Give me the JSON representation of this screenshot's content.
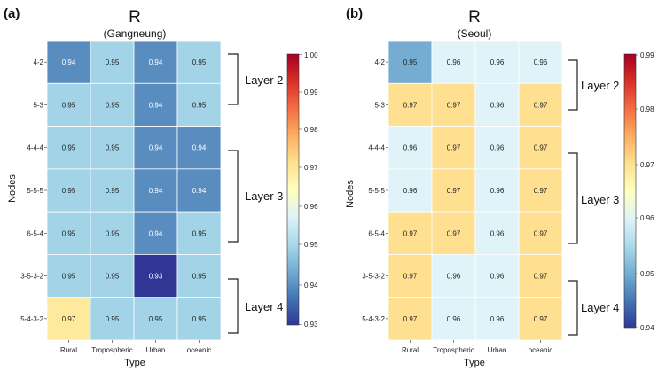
{
  "figure": {
    "panels": [
      {
        "id": "a",
        "panel_label": "(a)",
        "title": "R",
        "subtitle": "(Gangneung)",
        "ylabel": "Nodes",
        "xlabel": "Type",
        "layer_labels": [
          "Layer 2",
          "Layer 3",
          "Layer 4"
        ],
        "colorbar_ticks": [
          "1.00",
          "0.99",
          "0.98",
          "0.97",
          "0.96",
          "0.95",
          "0.94",
          "0.93"
        ]
      },
      {
        "id": "b",
        "panel_label": "(b)",
        "title": "R",
        "subtitle": "(Seoul)",
        "ylabel": "Nodes",
        "xlabel": "Type",
        "layer_labels": [
          "Layer 2",
          "Layer 3",
          "Layer 4"
        ],
        "colorbar_ticks": [
          "0.99",
          "0.98",
          "0.97",
          "0.96",
          "0.95",
          "0.94"
        ]
      }
    ]
  },
  "chart_data": [
    {
      "type": "heatmap",
      "title": "R",
      "subtitle": "(Gangneung)",
      "xlabel": "Type",
      "ylabel": "Nodes",
      "categories": [
        "Rural",
        "Tropospheric",
        "Urban",
        "oceanic"
      ],
      "rows": [
        "4-2",
        "5-3",
        "4-4-4",
        "5-5-5",
        "6-5-4",
        "3-5-3-2",
        "5-4-3-2"
      ],
      "values": [
        [
          0.94,
          0.95,
          0.94,
          0.95
        ],
        [
          0.95,
          0.95,
          0.94,
          0.95
        ],
        [
          0.95,
          0.95,
          0.94,
          0.94
        ],
        [
          0.95,
          0.95,
          0.94,
          0.94
        ],
        [
          0.95,
          0.95,
          0.94,
          0.95
        ],
        [
          0.95,
          0.95,
          0.93,
          0.95
        ],
        [
          0.97,
          0.95,
          0.95,
          0.95
        ]
      ],
      "color_range": [
        0.93,
        1.0
      ],
      "colormap": "RdYlBu_r",
      "groups": [
        {
          "label": "Layer 2",
          "rows": [
            "4-2",
            "5-3"
          ]
        },
        {
          "label": "Layer 3",
          "rows": [
            "4-4-4",
            "5-5-5",
            "6-5-4"
          ]
        },
        {
          "label": "Layer 4",
          "rows": [
            "3-5-3-2",
            "5-4-3-2"
          ]
        }
      ]
    },
    {
      "type": "heatmap",
      "title": "R",
      "subtitle": "(Seoul)",
      "xlabel": "Type",
      "ylabel": "Nodes",
      "categories": [
        "Rural",
        "Tropospheric",
        "Urban",
        "oceanic"
      ],
      "rows": [
        "4-2",
        "5-3",
        "4-4-4",
        "5-5-5",
        "6-5-4",
        "3-5-3-2",
        "5-4-3-2"
      ],
      "values": [
        [
          0.95,
          0.96,
          0.96,
          0.96
        ],
        [
          0.97,
          0.97,
          0.96,
          0.97
        ],
        [
          0.96,
          0.97,
          0.96,
          0.97
        ],
        [
          0.96,
          0.97,
          0.96,
          0.97
        ],
        [
          0.97,
          0.97,
          0.96,
          0.97
        ],
        [
          0.97,
          0.96,
          0.96,
          0.97
        ],
        [
          0.97,
          0.96,
          0.96,
          0.97
        ]
      ],
      "color_range": [
        0.94,
        0.99
      ],
      "colormap": "RdYlBu_r",
      "groups": [
        {
          "label": "Layer 2",
          "rows": [
            "4-2",
            "5-3"
          ]
        },
        {
          "label": "Layer 3",
          "rows": [
            "4-4-4",
            "5-5-5",
            "6-5-4"
          ]
        },
        {
          "label": "Layer 4",
          "rows": [
            "3-5-3-2",
            "5-4-3-2"
          ]
        }
      ]
    }
  ]
}
